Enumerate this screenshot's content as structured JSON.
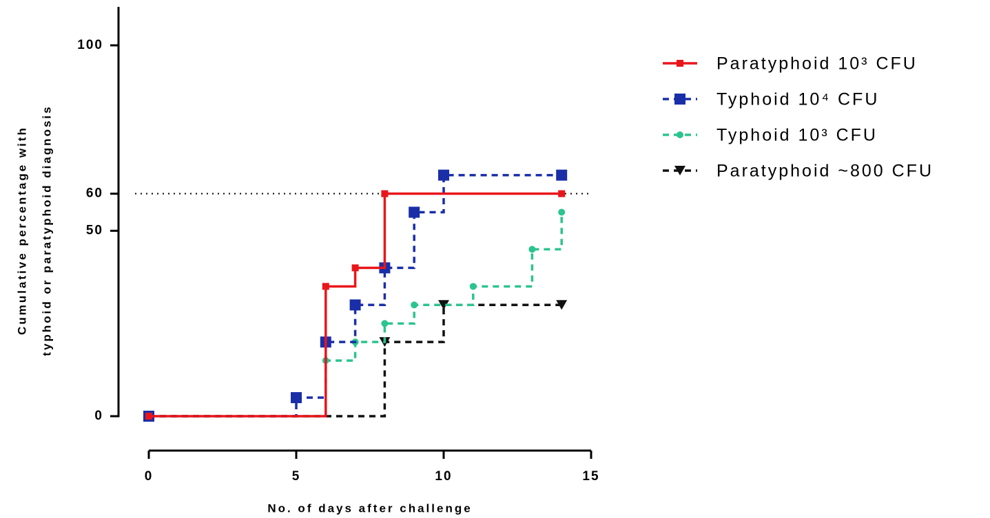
{
  "chart_data": {
    "type": "step",
    "xlabel": "No. of days after challenge",
    "ylabel": [
      "Cumulative percentage with",
      "typhoid or paratyphoid diagnosis"
    ],
    "xlim": [
      0,
      15
    ],
    "xticks": [
      0,
      5,
      10,
      15
    ],
    "ylim": [
      0,
      110
    ],
    "yticks": [
      0,
      50,
      60,
      100
    ],
    "reference_line": 60,
    "series": [
      {
        "name": "Paratyphoid 10³ CFU",
        "color": "#e8161b",
        "dashed": false,
        "marker": "small-square",
        "x": [
          0,
          6,
          7,
          8,
          14
        ],
        "values": [
          0,
          35,
          40,
          60,
          60
        ]
      },
      {
        "name": "Typhoid 10⁴ CFU",
        "color": "#1a2ea8",
        "dashed": true,
        "marker": "square",
        "x": [
          0,
          5,
          6,
          7,
          8,
          9,
          10,
          14
        ],
        "values": [
          0,
          5,
          20,
          30,
          40,
          55,
          65,
          65
        ]
      },
      {
        "name": "Typhoid 10³ CFU",
        "color": "#2bc48e",
        "dashed": true,
        "marker": "circle",
        "x": [
          0,
          6,
          7,
          8,
          9,
          11,
          13,
          14
        ],
        "values": [
          0,
          15,
          20,
          25,
          30,
          35,
          45,
          55
        ]
      },
      {
        "name": "Paratyphoid ~800 CFU",
        "color": "#111111",
        "dashed": true,
        "marker": "triangle",
        "x": [
          0,
          8,
          10,
          14
        ],
        "values": [
          0,
          20,
          30,
          30
        ]
      }
    ]
  }
}
